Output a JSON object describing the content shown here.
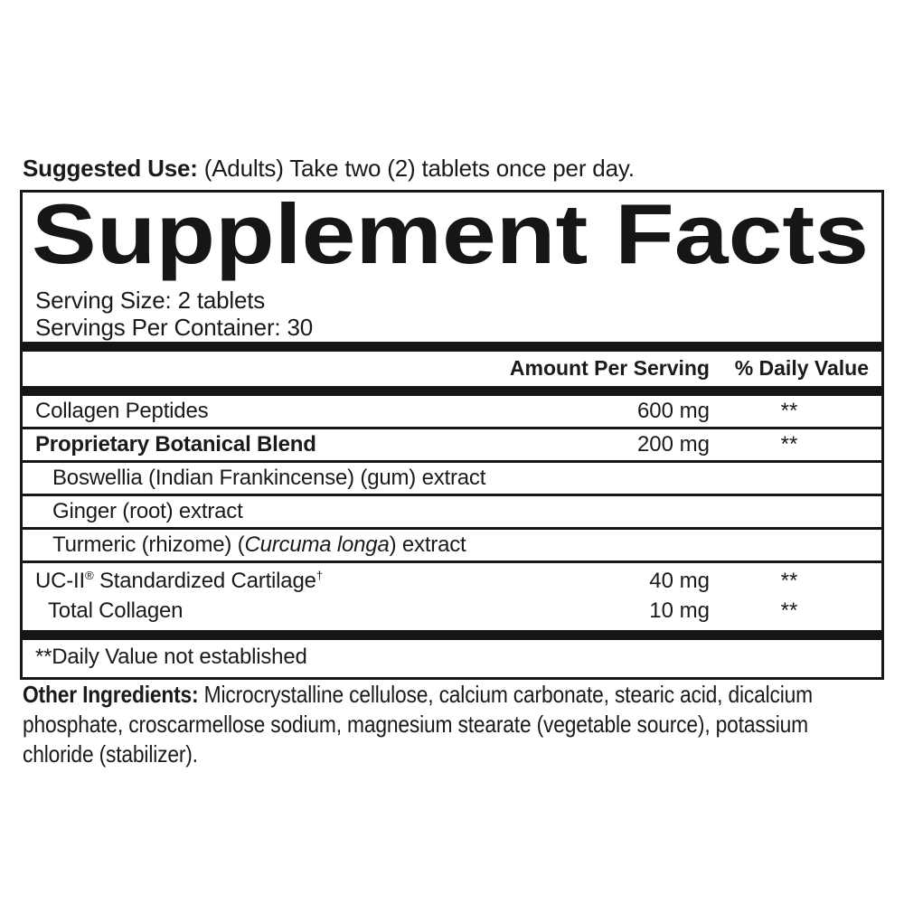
{
  "suggested_use": {
    "label": "Suggested Use:",
    "text": " (Adults) Take two (2) tablets once per day."
  },
  "panel": {
    "title": "Supplement Facts",
    "serving_size": "Serving Size: 2 tablets",
    "servings_per_container": "Servings Per Container: 30",
    "header": {
      "amount": "Amount Per Serving",
      "daily_value": "% Daily Value"
    },
    "rows": {
      "collagen_peptides": {
        "name": "Collagen Peptides",
        "amount": "600 mg",
        "daily_value": "**"
      },
      "proprietary_blend": {
        "name": "Proprietary Botanical Blend",
        "amount": "200 mg",
        "daily_value": "**"
      },
      "boswellia": {
        "name": "Boswellia (Indian Frankincense) (gum) extract"
      },
      "ginger": {
        "name": "Ginger (root) extract"
      },
      "turmeric": {
        "name_prefix": "Turmeric (rhizome) (",
        "name_italic": "Curcuma longa",
        "name_suffix": ") extract"
      },
      "uc_ii": {
        "name_pre": "UC-II",
        "trademark": "®",
        "name_post": " Standardized Cartilage",
        "dagger": "†",
        "amount": "40 mg",
        "daily_value": "**"
      },
      "total_collagen": {
        "name": "Total Collagen",
        "amount": "10 mg",
        "daily_value": "**"
      }
    },
    "footnote": "**Daily Value not established"
  },
  "other_ingredients": {
    "label": "Other Ingredients:",
    "text": " Microcrystalline cellulose, calcium carbonate, stearic acid, dicalcium phosphate, croscarmellose sodium, magnesium stearate (vegetable source), potassium chloride (stabilizer)."
  },
  "colors": {
    "text": "#1a1a1a",
    "rule": "#161616",
    "background": "#ffffff"
  }
}
